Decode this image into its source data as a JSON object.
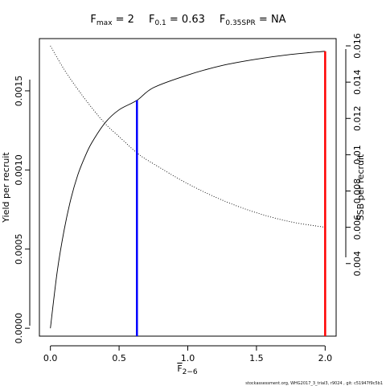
{
  "chart_data": {
    "type": "line",
    "title": {
      "fmax_label": "F",
      "fmax_sub": "max",
      "fmax_value": " = 2",
      "f01_label": "F",
      "f01_sub": "0.1",
      "f01_value": " = 0.63",
      "fspr_label": "F",
      "fspr_sub": "0.35SPR",
      "fspr_value": " = NA"
    },
    "xlabel": {
      "main": "F",
      "sub": "2−6"
    },
    "ylabel": "Yield per recruit",
    "y2label": "SSB per recruit",
    "xlim": [
      -0.08,
      2.08
    ],
    "ylim": [
      -5e-05,
      0.00183
    ],
    "y2lim": [
      0.0,
      0.0164
    ],
    "x_ticks": [
      0,
      0.5,
      1.0,
      1.5,
      2.0
    ],
    "x_tick_labels": [
      "0.0",
      "0.5",
      "1.0",
      "1.5",
      "2.0"
    ],
    "y_ticks": [
      0.0,
      0.0005,
      0.001,
      0.0015
    ],
    "y_tick_labels": [
      "0.0000",
      "0.0005",
      "0.0010",
      "0.0015"
    ],
    "y2_ticks": [
      0.004,
      0.006,
      0.008,
      0.01,
      0.012,
      0.014,
      0.016
    ],
    "y2_tick_labels": [
      "0.004",
      "0.006",
      "0.008",
      "0.01",
      "0.012",
      "0.014",
      "0.016"
    ],
    "series": [
      {
        "axis": "left",
        "style": "solid",
        "color": "#000000",
        "x": [
          0,
          0.05,
          0.1,
          0.15,
          0.2,
          0.25,
          0.3,
          0.4,
          0.5,
          0.63,
          0.75,
          1.0,
          1.25,
          1.5,
          1.75,
          2.0
        ],
        "y": [
          0.0,
          0.00036,
          0.00062,
          0.00082,
          0.00097,
          0.00108,
          0.00117,
          0.0013,
          0.00138,
          0.00144,
          0.00152,
          0.0016,
          0.00166,
          0.0017,
          0.00173,
          0.00175
        ]
      },
      {
        "axis": "right",
        "style": "dotted",
        "color": "#000000",
        "x": [
          0,
          0.1,
          0.2,
          0.3,
          0.4,
          0.5,
          0.63,
          0.75,
          1.0,
          1.25,
          1.5,
          1.75,
          2.0
        ],
        "y": [
          0.016,
          0.0147,
          0.0136,
          0.0126,
          0.0117,
          0.011,
          0.0101,
          0.0095,
          0.0084,
          0.0075,
          0.0068,
          0.0063,
          0.006
        ]
      }
    ],
    "reference_lines": [
      {
        "name": "F0.1",
        "x": 0.63,
        "y": 0.00144,
        "color": "#0000ff"
      },
      {
        "name": "Fmax",
        "x": 2.0,
        "y": 0.00175,
        "color": "#ff0000"
      }
    ]
  },
  "footer": "stockassessment.org, WHG2017_3_trial3, r9024 , git: c51947f9c5b1"
}
